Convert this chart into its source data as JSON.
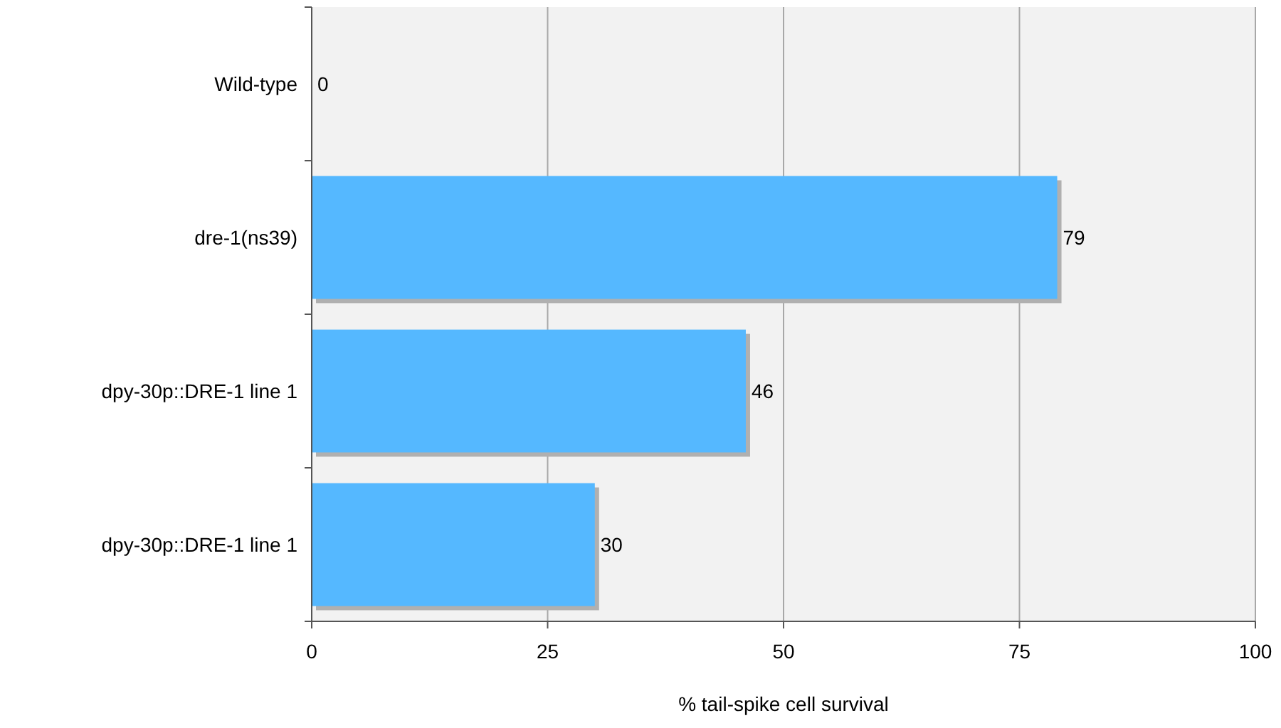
{
  "chart_data": {
    "type": "bar",
    "orientation": "horizontal",
    "xlabel": "% tail-spike cell survival",
    "categories": [
      "Wild-type",
      "dre-1(ns39)",
      "dpy-30p::DRE-1 line 1",
      "dpy-30p::DRE-1 line 1"
    ],
    "values": [
      0,
      79,
      46,
      30
    ],
    "color": "#55b8ff",
    "xlim": [
      0,
      100
    ],
    "xticks": [
      0,
      25,
      50,
      75,
      100
    ],
    "grid": "x",
    "data_labels": true
  }
}
